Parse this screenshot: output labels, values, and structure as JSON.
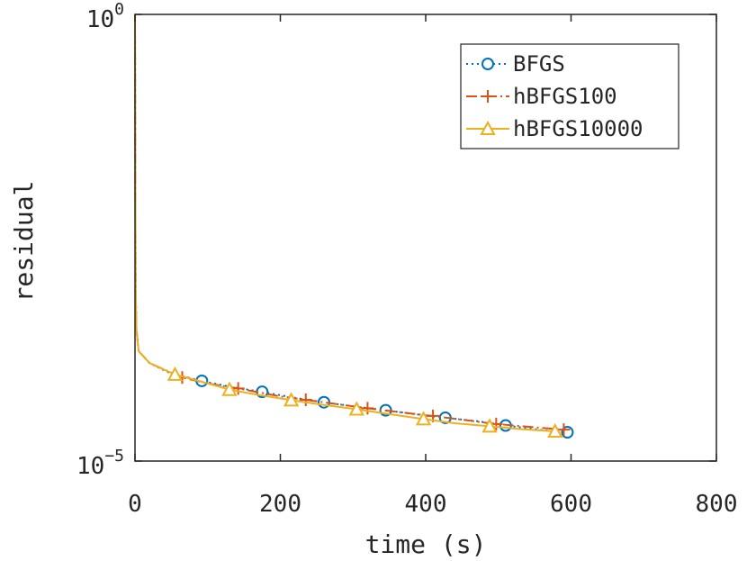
{
  "chart_data": {
    "type": "line",
    "title": "",
    "xlabel": "time (s)",
    "ylabel": "residual",
    "xlim": [
      0,
      800
    ],
    "ylim": [
      1e-05,
      1
    ],
    "yscale": "log",
    "xticks": [
      0,
      200,
      400,
      600,
      800
    ],
    "xtick_labels": [
      "0",
      "200",
      "400",
      "600",
      "800"
    ],
    "yticks": [
      {
        "value": 1e-05,
        "base": "10",
        "exp": "−5"
      },
      {
        "value": 1,
        "base": "10",
        "exp": "0"
      }
    ],
    "grid": false,
    "legend_position": "top-right",
    "series": [
      {
        "name": "BFGS",
        "color": "#0072BD",
        "line_style": "dotted",
        "marker": "circle",
        "x": [
          0,
          0.5,
          1,
          2,
          5,
          20,
          50,
          92,
          130,
          175,
          220,
          260,
          300,
          345,
          385,
          427,
          470,
          510,
          560,
          595
        ],
        "y": [
          1,
          0.01,
          0.0008,
          0.0003,
          0.00017,
          0.000125,
          9.5e-05,
          7.9e-05,
          6.8e-05,
          5.95e-05,
          5.1e-05,
          4.55e-05,
          4.1e-05,
          3.7e-05,
          3.35e-05,
          3.05e-05,
          2.8e-05,
          2.5e-05,
          2.22e-05,
          2.1e-05
        ],
        "marker_x": [
          92,
          175,
          260,
          345,
          427,
          510,
          595
        ],
        "marker_y": [
          7.9e-05,
          5.95e-05,
          4.55e-05,
          3.7e-05,
          3.05e-05,
          2.5e-05,
          2.1e-05
        ]
      },
      {
        "name": "hBFGS100",
        "color": "#D95319",
        "line_style": "dashdot",
        "marker": "plus",
        "x": [
          0,
          0.5,
          1,
          2,
          5,
          20,
          65,
          100,
          142,
          200,
          235,
          300,
          320,
          400,
          410,
          480,
          497,
          560,
          590
        ],
        "y": [
          1,
          0.01,
          0.0008,
          0.0003,
          0.00017,
          0.000125,
          8.6e-05,
          7.4e-05,
          6.5e-05,
          5.3e-05,
          4.85e-05,
          4.1e-05,
          3.9e-05,
          3.25e-05,
          3.2e-05,
          2.7e-05,
          2.6e-05,
          2.35e-05,
          2.25e-05
        ],
        "marker_x": [
          65,
          142,
          235,
          320,
          410,
          497,
          590
        ],
        "marker_y": [
          8.6e-05,
          6.5e-05,
          4.85e-05,
          3.9e-05,
          3.2e-05,
          2.6e-05,
          2.25e-05
        ]
      },
      {
        "name": "hBFGS10000",
        "color": "#EDB120",
        "line_style": "solid",
        "marker": "triangle",
        "x": [
          0,
          0.5,
          1,
          2,
          5,
          20,
          55,
          90,
          130,
          170,
          215,
          260,
          305,
          350,
          397,
          440,
          488,
          530,
          578,
          585
        ],
        "y": [
          1,
          0.01,
          0.0008,
          0.0003,
          0.00017,
          0.000125,
          9.3e-05,
          7.8e-05,
          6.3e-05,
          5.5e-05,
          4.8e-05,
          4.25e-05,
          3.8e-05,
          3.35e-05,
          2.95e-05,
          2.65e-05,
          2.45e-05,
          2.28e-05,
          2.15e-05,
          2.1e-05
        ],
        "marker_x": [
          55,
          130,
          215,
          305,
          397,
          488,
          578
        ],
        "marker_y": [
          9.3e-05,
          6.3e-05,
          4.8e-05,
          3.8e-05,
          2.95e-05,
          2.45e-05,
          2.15e-05
        ]
      }
    ]
  }
}
